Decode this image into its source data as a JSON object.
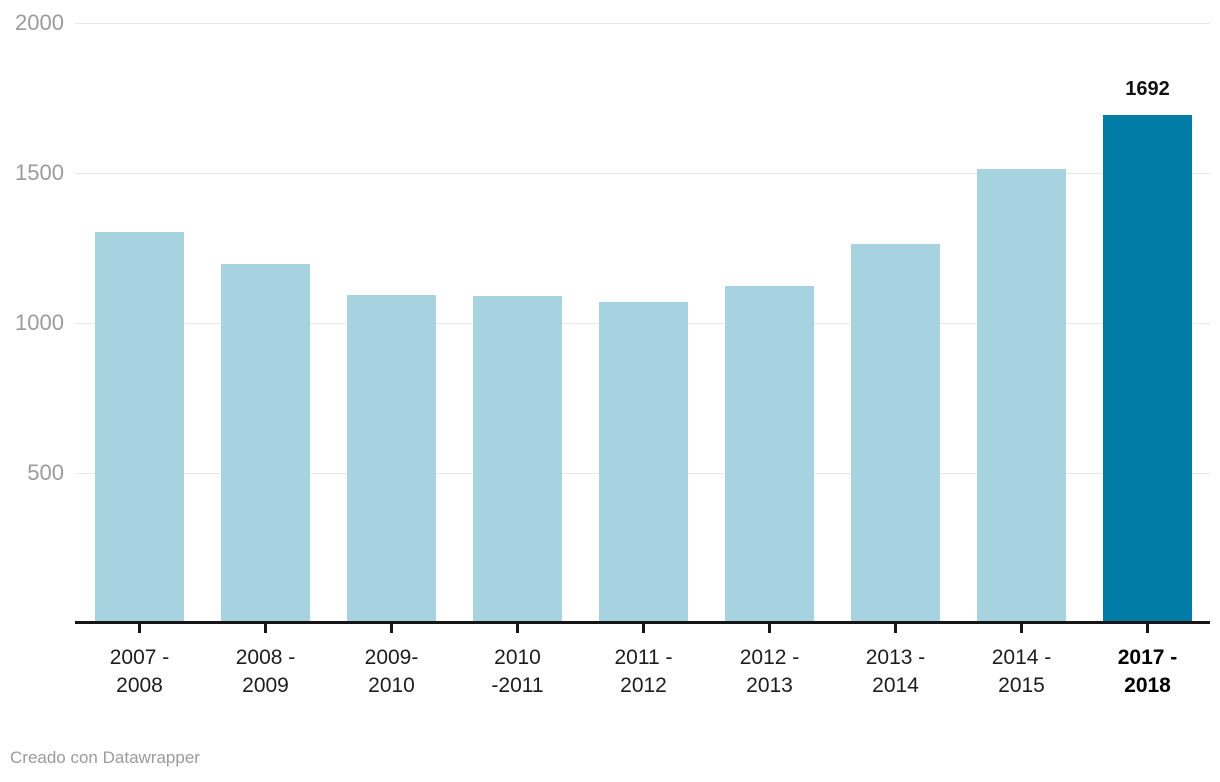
{
  "chart_data": {
    "type": "bar",
    "categories": [
      [
        "2007 -",
        "2008"
      ],
      [
        "2008 -",
        "2009"
      ],
      [
        "2009-",
        "2010"
      ],
      [
        "2010",
        "-2011"
      ],
      [
        "2011 -",
        "2012"
      ],
      [
        "2012 -",
        "2013"
      ],
      [
        "2013 -",
        "2014"
      ],
      [
        "2014 -",
        "2015"
      ],
      [
        "2017 -",
        "2018"
      ]
    ],
    "values": [
      1303,
      1197,
      1093,
      1090,
      1071,
      1124,
      1262,
      1514,
      1692
    ],
    "highlight": {
      "index": 8,
      "value_label": "1692"
    },
    "yticks": [
      500,
      1000,
      1500,
      2000
    ],
    "ylim": [
      0,
      2000
    ],
    "title": "",
    "xlabel": "",
    "ylabel": "",
    "legend": "none",
    "grid": "horizontal",
    "colors": {
      "bar": "#a7d2e0",
      "bar_highlight": "#007ca6",
      "grid": "#e8e8e8",
      "axis": "#161616",
      "y_label": "#9b9b9b",
      "x_label": "#1d1d1d"
    }
  },
  "footer": {
    "credit": "Creado con Datawrapper"
  }
}
